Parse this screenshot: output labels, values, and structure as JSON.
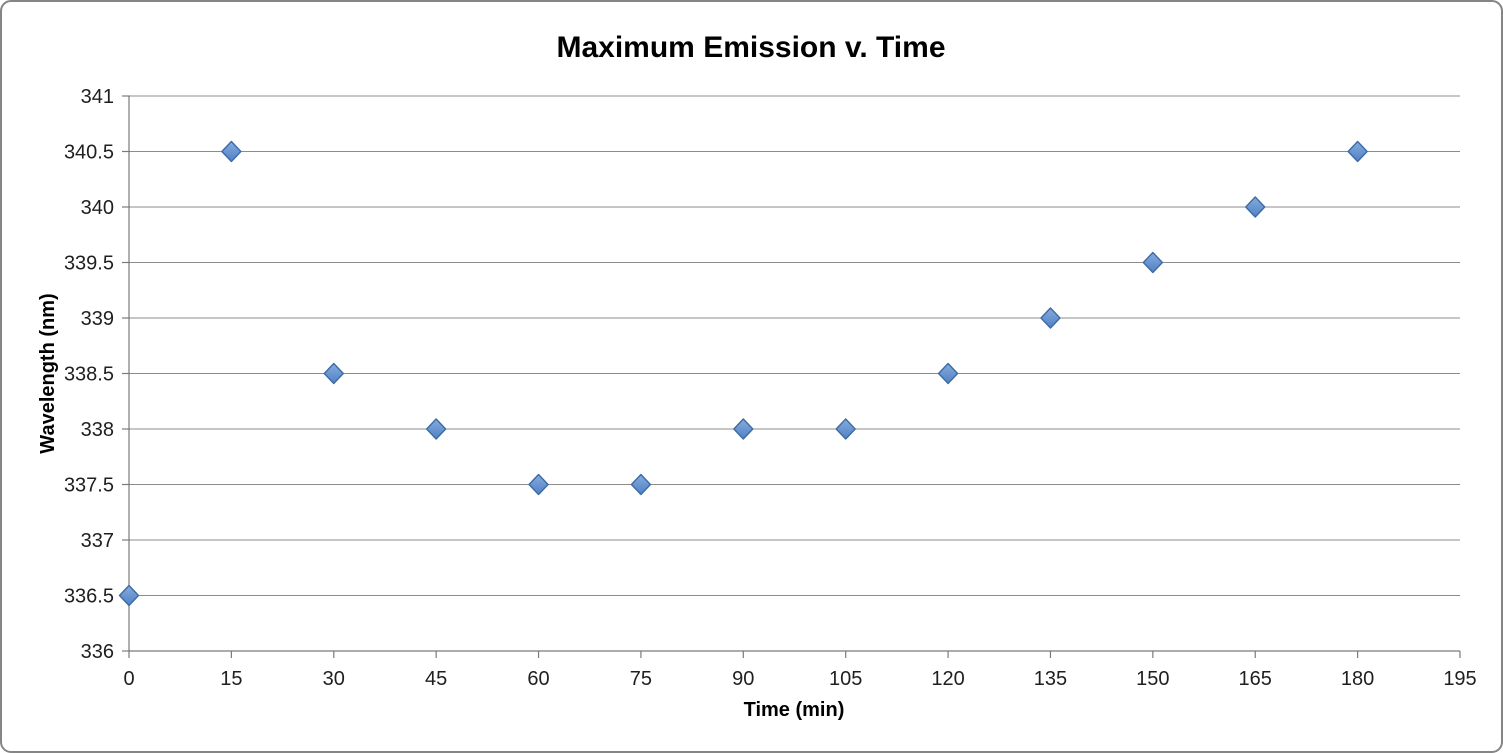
{
  "chart_data": {
    "type": "scatter",
    "title": "Maximum Emission v. Time",
    "xlabel": "Time (min)",
    "ylabel": "Wavelength (nm)",
    "points": [
      [
        0,
        336.5
      ],
      [
        15,
        340.5
      ],
      [
        30,
        338.5
      ],
      [
        45,
        338.0
      ],
      [
        60,
        337.5
      ],
      [
        75,
        337.5
      ],
      [
        90,
        338.0
      ],
      [
        105,
        338.0
      ],
      [
        120,
        338.5
      ],
      [
        135,
        339.0
      ],
      [
        150,
        339.5
      ],
      [
        165,
        340.0
      ],
      [
        180,
        340.5
      ]
    ],
    "xlim": [
      0,
      195
    ],
    "ylim": [
      336,
      341
    ],
    "x_tick_step": 15,
    "y_tick_step": 0.5,
    "x_ticks": [
      "0",
      "15",
      "30",
      "45",
      "60",
      "75",
      "90",
      "105",
      "120",
      "135",
      "150",
      "165",
      "180",
      "195"
    ],
    "y_ticks": [
      "336",
      "336.5",
      "337",
      "337.5",
      "338",
      "338.5",
      "339",
      "339.5",
      "340",
      "340.5",
      "341"
    ],
    "grid": "horizontal-gridlines",
    "legend_position": "none",
    "marker": "diamond",
    "colors": {
      "marker_fill_top": "#84ace0",
      "marker_fill_bottom": "#5181c4",
      "marker_stroke": "#3e6ba1",
      "gridline": "#8c8c8c",
      "axis": "#7a7a7a",
      "tick_label": "#1f1f1f",
      "title_text": "#000000",
      "frame_border": "#858585",
      "background": "#ffffff"
    }
  }
}
